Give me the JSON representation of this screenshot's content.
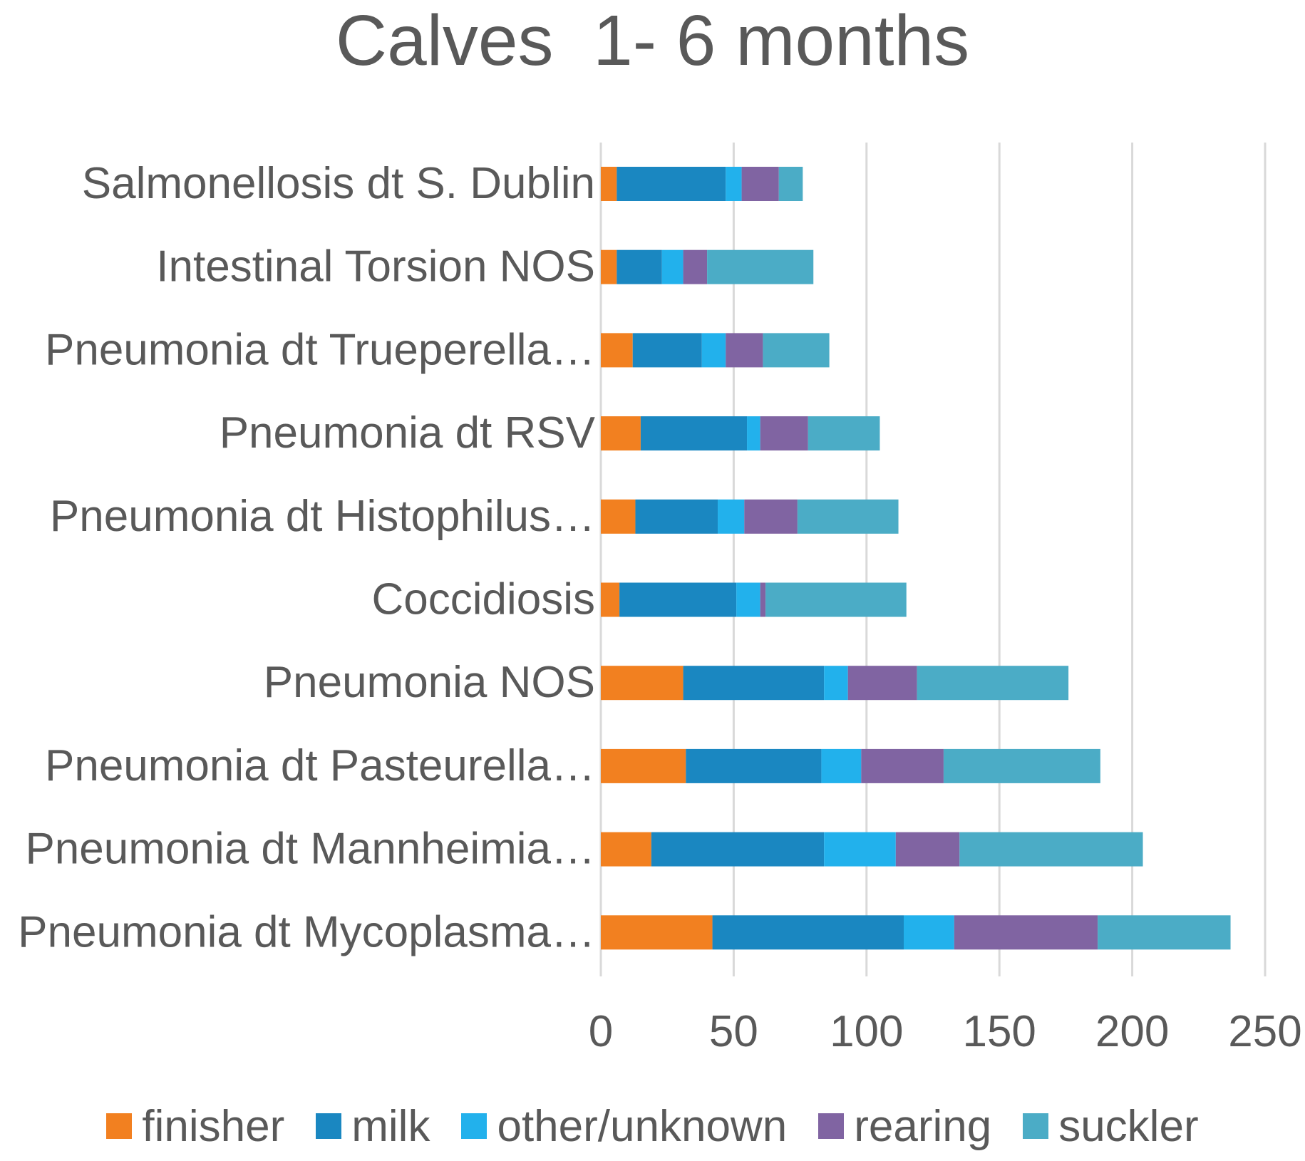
{
  "chart_data": {
    "type": "bar",
    "orientation": "horizontal",
    "stacked": true,
    "title": "Calves  1- 6 months",
    "categories": [
      "Salmonellosis dt S. Dublin",
      "Intestinal Torsion NOS",
      "Pneumonia dt Trueperella…",
      "Pneumonia dt RSV",
      "Pneumonia dt Histophilus…",
      "Coccidiosis",
      "Pneumonia NOS",
      "Pneumonia dt Pasteurella…",
      "Pneumonia dt Mannheimia…",
      "Pneumonia dt Mycoplasma…"
    ],
    "series": [
      {
        "name": "finisher",
        "color": "#F28020",
        "values": [
          6,
          6,
          12,
          15,
          13,
          7,
          31,
          32,
          19,
          42
        ]
      },
      {
        "name": "milk",
        "color": "#1A87C1",
        "values": [
          41,
          17,
          26,
          40,
          31,
          44,
          53,
          51,
          65,
          72
        ]
      },
      {
        "name": "other/unknown",
        "color": "#22B1EC",
        "values": [
          6,
          8,
          9,
          5,
          10,
          9,
          9,
          15,
          27,
          19
        ]
      },
      {
        "name": "rearing",
        "color": "#8064A2",
        "values": [
          14,
          9,
          14,
          18,
          20,
          2,
          26,
          31,
          24,
          54
        ]
      },
      {
        "name": "suckler",
        "color": "#4BACC6",
        "values": [
          9,
          40,
          25,
          27,
          38,
          53,
          57,
          59,
          69,
          50
        ]
      }
    ],
    "xlim": [
      0,
      250
    ],
    "xticks": [
      "0",
      "50",
      "100",
      "150",
      "200",
      "250"
    ],
    "grid": "vertical",
    "legend": "bottom"
  }
}
